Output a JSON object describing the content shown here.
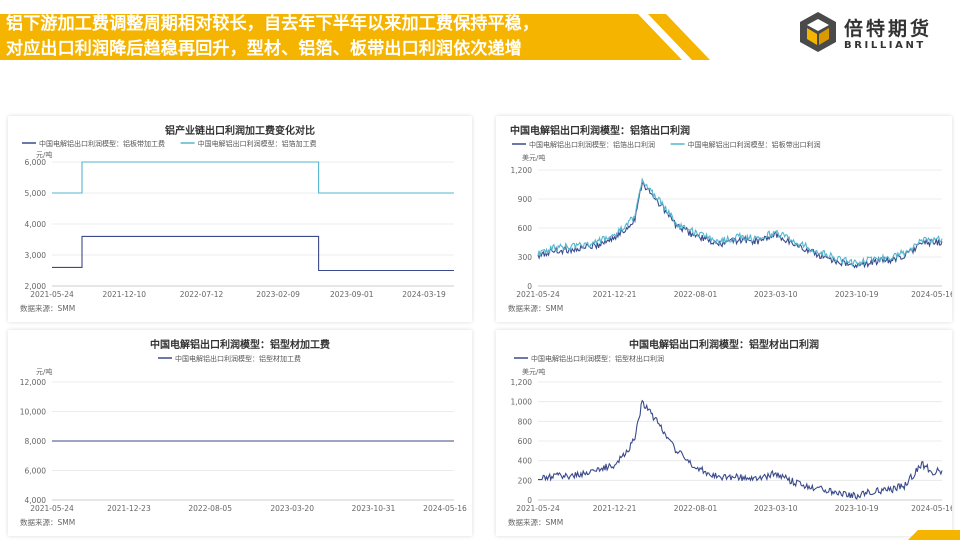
{
  "header": {
    "line1": "铝下游加工费调整周期相对较长，自去年下半年以来加工费保持平稳，",
    "line2": "对应出口利润降后趋稳再回升，型材、铝箔、板带出口利润依次递增",
    "accent_color": "#F5B400"
  },
  "brand": {
    "name": "倍特期货",
    "english": "BRILLIANT",
    "logo_icon": "cube-icon"
  },
  "source_label": "数据来源：SMM",
  "chart_data": [
    {
      "id": "chart1",
      "type": "line",
      "title": "铝产业链出口利润加工费变化对比",
      "unit": "元/吨",
      "ylim": [
        2000,
        6000
      ],
      "yticks": [
        "2,000",
        "3,000",
        "4,000",
        "5,000",
        "6,000"
      ],
      "xlim": [
        "2021-05-24",
        "2024-06-10"
      ],
      "xticks": [
        "2021-05-24",
        "2021-12-10",
        "2022-07-12",
        "2023-02-09",
        "2023-09-01",
        "2024-03-19"
      ],
      "legend_position": "top-left",
      "grid": "horizontal",
      "series": [
        {
          "name": "中国电解铝出口利润模型：铝板带加工费",
          "color": "#3B4A8A",
          "style": "step",
          "points": [
            [
              "2021-05-24",
              2600
            ],
            [
              "2021-08-15",
              2600
            ],
            [
              "2021-08-15",
              3600
            ],
            [
              "2023-06-01",
              3600
            ],
            [
              "2023-06-01",
              2500
            ],
            [
              "2024-06-10",
              2500
            ]
          ]
        },
        {
          "name": "中国电解铝出口利润模型：铝箔加工费",
          "color": "#55B5CF",
          "style": "step",
          "points": [
            [
              "2021-05-24",
              5000
            ],
            [
              "2021-08-15",
              5000
            ],
            [
              "2021-08-15",
              6000
            ],
            [
              "2023-06-01",
              6000
            ],
            [
              "2023-06-01",
              5000
            ],
            [
              "2024-06-10",
              5000
            ]
          ]
        }
      ]
    },
    {
      "id": "chart2",
      "type": "line",
      "title": "中国电解铝出口利润模型：铝箔出口利润",
      "unit": "美元/吨",
      "ylim": [
        0,
        1200
      ],
      "yticks": [
        "0",
        "300",
        "600",
        "900",
        "1,200"
      ],
      "xlim": [
        "2021-05-24",
        "2024-06-10"
      ],
      "xticks": [
        "2021-05-24",
        "2021-12-21",
        "2022-08-01",
        "2023-03-10",
        "2023-10-19",
        "2024-05-16"
      ],
      "legend_position": "top-left",
      "grid": "horizontal",
      "series": [
        {
          "name": "中国电解铝出口利润模型：铝箔出口利润",
          "color": "#3B4A8A",
          "points": [
            [
              "2021-05-24",
              300
            ],
            [
              "2021-07-01",
              360
            ],
            [
              "2021-09-01",
              380
            ],
            [
              "2021-11-01",
              420
            ],
            [
              "2021-12-21",
              500
            ],
            [
              "2022-01-20",
              580
            ],
            [
              "2022-02-15",
              700
            ],
            [
              "2022-03-07",
              1080
            ],
            [
              "2022-04-01",
              940
            ],
            [
              "2022-05-01",
              820
            ],
            [
              "2022-06-10",
              620
            ],
            [
              "2022-08-01",
              520
            ],
            [
              "2022-10-01",
              430
            ],
            [
              "2022-12-01",
              480
            ],
            [
              "2023-01-20",
              460
            ],
            [
              "2023-03-10",
              530
            ],
            [
              "2023-05-01",
              430
            ],
            [
              "2023-07-01",
              330
            ],
            [
              "2023-09-01",
              250
            ],
            [
              "2023-10-19",
              200
            ],
            [
              "2023-12-01",
              250
            ],
            [
              "2024-01-20",
              270
            ],
            [
              "2024-03-01",
              320
            ],
            [
              "2024-04-15",
              440
            ],
            [
              "2024-05-16",
              450
            ],
            [
              "2024-06-10",
              460
            ]
          ]
        },
        {
          "name": "中国电解铝出口利润模型：铝板带出口利润",
          "color": "#55B5CF",
          "points": [
            [
              "2021-05-24",
              330
            ],
            [
              "2021-07-01",
              390
            ],
            [
              "2021-09-01",
              410
            ],
            [
              "2021-11-01",
              450
            ],
            [
              "2021-12-21",
              530
            ],
            [
              "2022-01-20",
              610
            ],
            [
              "2022-02-15",
              730
            ],
            [
              "2022-03-07",
              1110
            ],
            [
              "2022-04-01",
              970
            ],
            [
              "2022-05-01",
              850
            ],
            [
              "2022-06-10",
              650
            ],
            [
              "2022-08-01",
              550
            ],
            [
              "2022-10-01",
              460
            ],
            [
              "2022-12-01",
              510
            ],
            [
              "2023-01-20",
              490
            ],
            [
              "2023-03-10",
              560
            ],
            [
              "2023-05-01",
              460
            ],
            [
              "2023-07-01",
              360
            ],
            [
              "2023-09-01",
              280
            ],
            [
              "2023-10-19",
              230
            ],
            [
              "2023-12-01",
              280
            ],
            [
              "2024-01-20",
              300
            ],
            [
              "2024-03-01",
              350
            ],
            [
              "2024-04-15",
              470
            ],
            [
              "2024-05-16",
              480
            ],
            [
              "2024-06-10",
              490
            ]
          ]
        }
      ]
    },
    {
      "id": "chart3",
      "type": "line",
      "title": "中国电解铝出口利润模型：铝型材加工费",
      "unit": "元/吨",
      "ylim": [
        4000,
        12000
      ],
      "yticks": [
        "4,000",
        "6,000",
        "8,000",
        "10,000",
        "12,000"
      ],
      "xlim": [
        "2021-05-24",
        "2024-06-10"
      ],
      "xticks": [
        "2021-05-24",
        "2021-12-23",
        "2022-08-05",
        "2023-03-20",
        "2023-10-31",
        "2024-05-16"
      ],
      "legend_position": "top-center",
      "grid": "horizontal",
      "series": [
        {
          "name": "中国电解铝出口利润模型：铝型材加工费",
          "color": "#3B4A8A",
          "style": "step",
          "points": [
            [
              "2021-05-24",
              8000
            ],
            [
              "2024-06-10",
              8000
            ]
          ]
        }
      ]
    },
    {
      "id": "chart4",
      "type": "line",
      "title": "中国电解铝出口利润模型：铝型材出口利润",
      "unit": "美元/吨",
      "ylim": [
        0,
        1200
      ],
      "yticks": [
        "0",
        "200",
        "400",
        "600",
        "800",
        "1,000",
        "1,200"
      ],
      "xlim": [
        "2021-05-24",
        "2024-06-10"
      ],
      "xticks": [
        "2021-05-24",
        "2021-12-21",
        "2022-08-01",
        "2023-03-10",
        "2023-10-19",
        "2024-05-16"
      ],
      "legend_position": "top-center",
      "grid": "horizontal",
      "series": [
        {
          "name": "中国电解铝出口利润模型：铝型材出口利润",
          "color": "#3B4A8A",
          "points": [
            [
              "2021-05-24",
              200
            ],
            [
              "2021-07-01",
              240
            ],
            [
              "2021-09-01",
              250
            ],
            [
              "2021-11-01",
              300
            ],
            [
              "2021-12-21",
              360
            ],
            [
              "2022-01-20",
              470
            ],
            [
              "2022-02-15",
              640
            ],
            [
              "2022-03-07",
              1000
            ],
            [
              "2022-04-01",
              870
            ],
            [
              "2022-05-01",
              730
            ],
            [
              "2022-06-10",
              500
            ],
            [
              "2022-08-01",
              330
            ],
            [
              "2022-10-01",
              240
            ],
            [
              "2022-12-01",
              230
            ],
            [
              "2023-01-20",
              210
            ],
            [
              "2023-03-10",
              270
            ],
            [
              "2023-05-01",
              180
            ],
            [
              "2023-07-01",
              120
            ],
            [
              "2023-09-01",
              80
            ],
            [
              "2023-10-19",
              40
            ],
            [
              "2023-12-01",
              90
            ],
            [
              "2024-01-20",
              100
            ],
            [
              "2024-03-01",
              150
            ],
            [
              "2024-04-15",
              370
            ],
            [
              "2024-05-16",
              280
            ],
            [
              "2024-06-10",
              300
            ]
          ]
        }
      ]
    }
  ]
}
